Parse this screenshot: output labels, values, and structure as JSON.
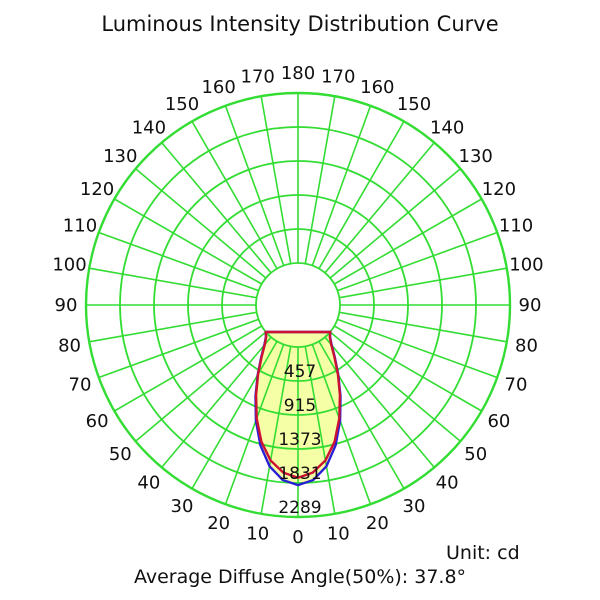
{
  "colors": {
    "grid": "#33dd33",
    "curve_c0": "#2b1fd6",
    "curve_c90": "#cc1133",
    "fill": "#f4ff9c"
  },
  "chart_data": {
    "type": "polar",
    "title": "Luminous Intensity Distribution Curve",
    "unit_text": "Unit: cd",
    "footer_text": "Average Diffuse Angle(50%): 37.8°",
    "r_ticks": [
      457,
      915,
      1373,
      1831,
      2289
    ],
    "r_max": 2289,
    "angle_ticks_left": [
      10,
      20,
      30,
      40,
      50,
      60,
      70,
      80,
      90,
      100,
      110,
      120,
      130,
      140,
      150,
      160,
      170
    ],
    "angle_ticks_right": [
      10,
      20,
      30,
      40,
      50,
      60,
      70,
      80,
      90,
      100,
      110,
      120,
      130,
      140,
      150,
      160,
      170
    ],
    "angle_top": 180,
    "angle_bottom": 0,
    "series": [
      {
        "angles": [
          0,
          5,
          10,
          15,
          20,
          25,
          30,
          35,
          40,
          45,
          50
        ],
        "values": [
          1860,
          1800,
          1640,
          1390,
          1090,
          790,
          520,
          300,
          140,
          45,
          0
        ]
      },
      {
        "angles": [
          0,
          5,
          10,
          15,
          20,
          25,
          30,
          35,
          40,
          45,
          50
        ],
        "values": [
          1760,
          1700,
          1560,
          1340,
          1060,
          770,
          510,
          290,
          130,
          40,
          0
        ]
      }
    ]
  }
}
